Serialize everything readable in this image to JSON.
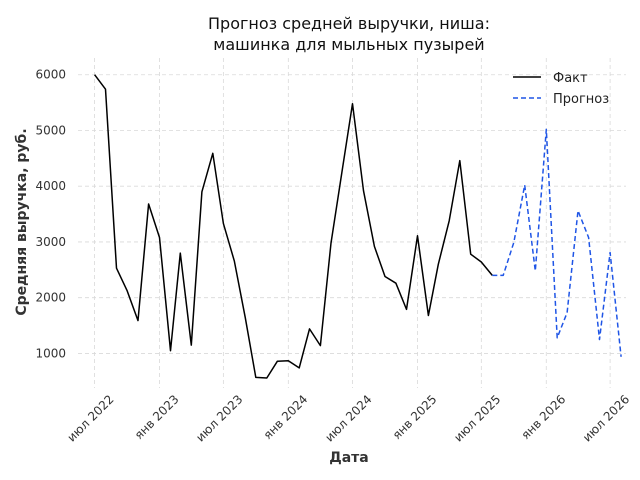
{
  "chart_data": {
    "type": "line",
    "title": [
      "Прогноз средней выручки, ниша:",
      "машинка для мыльных пузырей"
    ],
    "xlabel": "Дата",
    "ylabel": "Средняя выручка, руб.",
    "xlim": [
      "2022-05-15",
      "2026-08-15"
    ],
    "ylim": [
      380,
      6300
    ],
    "yticks": [
      1000,
      2000,
      3000,
      4000,
      5000,
      6000
    ],
    "xticks": [
      {
        "date": "2022-07-01",
        "label": "июл 2022"
      },
      {
        "date": "2023-01-01",
        "label": "янв 2023"
      },
      {
        "date": "2023-07-01",
        "label": "июл 2023"
      },
      {
        "date": "2024-01-01",
        "label": "янв 2024"
      },
      {
        "date": "2024-07-01",
        "label": "июл 2024"
      },
      {
        "date": "2025-01-01",
        "label": "янв 2025"
      },
      {
        "date": "2025-07-01",
        "label": "июл 2025"
      },
      {
        "date": "2026-01-01",
        "label": "янв 2026"
      },
      {
        "date": "2026-07-01",
        "label": "июл 2026"
      }
    ],
    "grid": true,
    "legend_position": "top-right",
    "series": [
      {
        "name": "Факт",
        "color": "#000000",
        "style": "solid",
        "x": [
          "2022-07-01",
          "2022-08-01",
          "2022-09-01",
          "2022-10-01",
          "2022-11-01",
          "2022-12-01",
          "2023-01-01",
          "2023-02-01",
          "2023-03-01",
          "2023-04-01",
          "2023-05-01",
          "2023-06-01",
          "2023-07-01",
          "2023-08-01",
          "2023-09-01",
          "2023-10-01",
          "2023-11-01",
          "2023-12-01",
          "2024-01-01",
          "2024-02-01",
          "2024-03-01",
          "2024-04-01",
          "2024-05-01",
          "2024-06-01",
          "2024-07-01",
          "2024-08-01",
          "2024-09-01",
          "2024-10-01",
          "2024-11-01",
          "2024-12-01",
          "2025-01-01",
          "2025-02-01",
          "2025-03-01",
          "2025-04-01",
          "2025-05-01",
          "2025-06-01",
          "2025-07-01",
          "2025-08-01"
        ],
        "y": [
          6000,
          5740,
          2530,
          2130,
          1590,
          3680,
          3080,
          1050,
          2800,
          1150,
          3900,
          4590,
          3330,
          2660,
          1640,
          570,
          560,
          860,
          870,
          740,
          1440,
          1140,
          2980,
          4250,
          5480,
          3920,
          2920,
          2380,
          2260,
          1790,
          3110,
          1680,
          2600,
          3380,
          4460,
          2780,
          2640,
          2400
        ]
      },
      {
        "name": "Прогноз",
        "color": "#1f55e6",
        "style": "dashed",
        "x": [
          "2025-08-01",
          "2025-09-01",
          "2025-10-01",
          "2025-11-01",
          "2025-12-01",
          "2026-01-01",
          "2026-02-01",
          "2026-03-01",
          "2026-04-01",
          "2026-05-01",
          "2026-06-01",
          "2026-07-01",
          "2026-08-01"
        ],
        "y": [
          2400,
          2400,
          2990,
          4020,
          2480,
          5020,
          1280,
          1730,
          3560,
          3080,
          1250,
          2810,
          940
        ]
      }
    ]
  }
}
